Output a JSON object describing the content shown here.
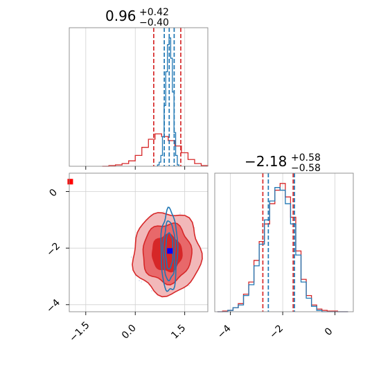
{
  "chart_data": [
    {
      "type": "histogram",
      "panel": "top-left",
      "title": {
        "median": "0.96",
        "plus": "+0.42",
        "minus": "−0.40"
      },
      "xlim": [
        -2.0,
        2.2
      ],
      "grid": true,
      "series": [
        {
          "color": "#d62728",
          "bins": [
            -0.9,
            -0.7,
            -0.5,
            -0.3,
            -0.1,
            0.1,
            0.3,
            0.5,
            0.7,
            0.9,
            1.1,
            1.3,
            1.5,
            1.7,
            1.9,
            2.1
          ],
          "counts": [
            0,
            0.005,
            0.01,
            0.02,
            0.04,
            0.08,
            0.14,
            0.2,
            0.24,
            0.22,
            0.19,
            0.15,
            0.1,
            0.05,
            0.02,
            0.005
          ],
          "quantile_lines": [
            0.56,
            1.38
          ]
        },
        {
          "color": "#1f77b4",
          "bins": [
            0.7,
            0.75,
            0.8,
            0.85,
            0.9,
            0.95,
            1.0,
            1.05,
            1.1,
            1.15,
            1.2,
            1.25,
            1.3
          ],
          "counts": [
            0.01,
            0.03,
            0.08,
            0.22,
            0.45,
            0.7,
            0.9,
            0.95,
            0.8,
            0.55,
            0.25,
            0.08,
            0.01
          ],
          "quantile_lines": [
            0.88,
            1.18
          ],
          "median_line": 1.03
        }
      ]
    },
    {
      "type": "histogram",
      "panel": "bottom-right",
      "title": {
        "median": "−2.18",
        "plus": "+0.58",
        "minus": "−0.58"
      },
      "xlim": [
        -4.6,
        0.7
      ],
      "xticks": [
        -4,
        -2,
        0
      ],
      "xtick_labels": [
        "−4",
        "−2",
        "0"
      ],
      "grid": true,
      "series": [
        {
          "color": "#d62728",
          "bins": [
            -4.4,
            -4.2,
            -4.0,
            -3.8,
            -3.6,
            -3.4,
            -3.2,
            -3.0,
            -2.8,
            -2.6,
            -2.4,
            -2.2,
            -2.0,
            -1.8,
            -1.6,
            -1.4,
            -1.2,
            -1.0,
            -0.8,
            -0.6,
            -0.4,
            -0.2,
            0.0,
            0.2,
            0.4
          ],
          "counts": [
            0,
            0.005,
            0.01,
            0.03,
            0.06,
            0.13,
            0.22,
            0.38,
            0.52,
            0.65,
            0.8,
            0.9,
            0.95,
            0.85,
            0.7,
            0.45,
            0.24,
            0.12,
            0.05,
            0.02,
            0.01,
            0.005,
            0.005,
            0,
            0
          ],
          "quantile_lines": [
            -2.76,
            -1.6
          ]
        },
        {
          "color": "#1f77b4",
          "bins": [
            -4.4,
            -4.2,
            -4.0,
            -3.8,
            -3.6,
            -3.4,
            -3.2,
            -3.0,
            -2.8,
            -2.6,
            -2.4,
            -2.2,
            -2.0,
            -1.8,
            -1.6,
            -1.4,
            -1.2,
            -1.0,
            -0.8,
            -0.6,
            -0.4,
            -0.2,
            0.0,
            0.2,
            0.4
          ],
          "counts": [
            0,
            0,
            0.01,
            0.03,
            0.05,
            0.12,
            0.2,
            0.34,
            0.5,
            0.68,
            0.82,
            0.92,
            0.9,
            0.8,
            0.65,
            0.42,
            0.22,
            0.1,
            0.04,
            0.01,
            0,
            0,
            0,
            0,
            0
          ],
          "quantile_lines": [
            -2.55,
            -1.55
          ]
        }
      ]
    },
    {
      "type": "contour",
      "panel": "bottom-left",
      "xlim": [
        -2.0,
        2.2
      ],
      "ylim": [
        -4.25,
        0.65
      ],
      "xticks": [
        -1.5,
        0.0,
        1.5
      ],
      "xtick_labels": [
        "−1.5",
        "0.0",
        "1.5"
      ],
      "yticks": [
        -4,
        -2,
        0
      ],
      "ytick_labels": [
        "−4",
        "−2",
        "0"
      ],
      "grid": true,
      "series": [
        {
          "color": "#d62728",
          "center": [
            0.96,
            -2.18
          ],
          "sigma": [
            0.41,
            0.58
          ],
          "levels": [
            2.5,
            1.8,
            1.1
          ],
          "filled": true
        },
        {
          "color": "#1f77b4",
          "center": [
            1.03,
            -2.1
          ],
          "sigma": [
            0.1,
            0.58
          ],
          "levels": [
            2.5,
            1.8,
            1.1
          ],
          "filled": false
        }
      ],
      "markers": [
        {
          "color": "#0000ff",
          "x": 1.05,
          "y": -2.1
        },
        {
          "color": "#ff0000",
          "x": -1.97,
          "y": 0.35
        }
      ]
    }
  ]
}
